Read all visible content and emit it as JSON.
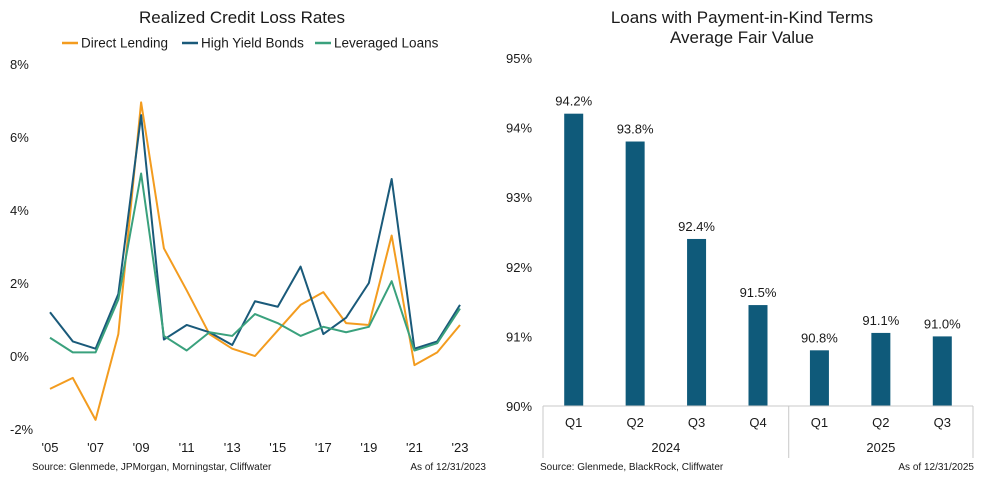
{
  "chart_data": [
    {
      "type": "line",
      "title": "Realized Credit Loss Rates",
      "x": [
        2005,
        2006,
        2007,
        2008,
        2009,
        2010,
        2011,
        2012,
        2013,
        2014,
        2015,
        2016,
        2017,
        2018,
        2019,
        2020,
        2021,
        2022,
        2023
      ],
      "x_tick_labels": [
        "'05",
        "'07",
        "'09",
        "'11",
        "'13",
        "'15",
        "'17",
        "'19",
        "'21",
        "'23"
      ],
      "x_tick_values": [
        2005,
        2007,
        2009,
        2011,
        2013,
        2015,
        2017,
        2019,
        2021,
        2023
      ],
      "y_tick_labels": [
        "8%",
        "6%",
        "4%",
        "2%",
        "0%",
        "-2%"
      ],
      "y_tick_values": [
        8,
        6,
        4,
        2,
        0,
        -2
      ],
      "ylim": [
        -2,
        8
      ],
      "xlim": [
        2005,
        2023
      ],
      "series": [
        {
          "name": "Direct Lending",
          "color": "#f39c1f",
          "values": [
            -0.9,
            -0.6,
            -1.75,
            0.6,
            6.95,
            2.95,
            1.8,
            0.6,
            0.2,
            0.0,
            0.7,
            1.4,
            1.75,
            0.9,
            0.85,
            3.3,
            -0.25,
            0.1,
            0.85
          ]
        },
        {
          "name": "High Yield Bonds",
          "color": "#1a5a7a",
          "values": [
            1.2,
            0.4,
            0.2,
            1.7,
            6.6,
            0.45,
            0.85,
            0.65,
            0.3,
            1.5,
            1.35,
            2.45,
            0.6,
            1.05,
            2.0,
            4.85,
            0.2,
            0.4,
            1.4
          ]
        },
        {
          "name": "Leveraged Loans",
          "color": "#3aa17d",
          "values": [
            0.5,
            0.1,
            0.1,
            1.55,
            5.0,
            0.55,
            0.15,
            0.65,
            0.55,
            1.15,
            0.9,
            0.55,
            0.8,
            0.65,
            0.8,
            2.05,
            0.15,
            0.35,
            1.3
          ]
        }
      ],
      "source": "Source: Glenmede, JPMorgan, Morningstar, Cliffwater",
      "as_of": "As of 12/31/2023"
    },
    {
      "type": "bar",
      "title_line1": "Loans with Payment-in-Kind Terms",
      "title_line2": "Average Fair Value",
      "categories": [
        "Q1",
        "Q2",
        "Q3",
        "Q4",
        "Q1",
        "Q2",
        "Q3"
      ],
      "groups": [
        {
          "label": "2024",
          "count": 4
        },
        {
          "label": "2025",
          "count": 3
        }
      ],
      "values": [
        94.2,
        93.8,
        92.4,
        91.45,
        90.8,
        91.05,
        91.0
      ],
      "data_labels": [
        "94.2%",
        "93.8%",
        "92.4%",
        "91.5%",
        "90.8%",
        "91.1%",
        "91.0%"
      ],
      "y_tick_labels": [
        "95%",
        "94%",
        "93%",
        "92%",
        "91%",
        "90%"
      ],
      "y_tick_values": [
        95,
        94,
        93,
        92,
        91,
        90
      ],
      "ylim": [
        90,
        95
      ],
      "bar_color": "#0f5a7a",
      "source": "Source: Glenmede, BlackRock, Cliffwater",
      "as_of": "As of 12/31/2025"
    }
  ]
}
